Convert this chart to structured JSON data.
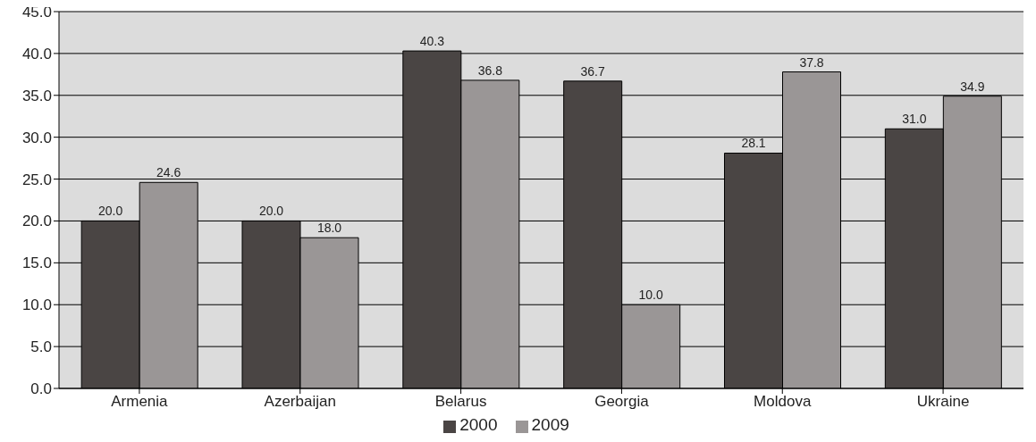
{
  "chart_data": {
    "type": "bar",
    "categories": [
      "Armenia",
      "Azerbaijan",
      "Belarus",
      "Georgia",
      "Moldova",
      "Ukraine"
    ],
    "series": [
      {
        "name": "2000",
        "color": "#4a4544",
        "values": [
          20.0,
          20.0,
          40.3,
          36.7,
          28.1,
          31.0
        ],
        "value_labels": [
          "20.0",
          "20.0",
          "40.3",
          "36.7",
          "28.1",
          "31.0"
        ]
      },
      {
        "name": "2009",
        "color": "#9a9696",
        "values": [
          24.6,
          18.0,
          36.8,
          10.0,
          37.8,
          34.9
        ],
        "value_labels": [
          "24.6",
          "18.0",
          "36.8",
          "10.0",
          "37.8",
          "34.9"
        ]
      }
    ],
    "ylim": [
      0,
      45
    ],
    "yticks": [
      {
        "value": 0,
        "label": "0.0"
      },
      {
        "value": 5,
        "label": "5.0"
      },
      {
        "value": 10,
        "label": "10.0"
      },
      {
        "value": 15,
        "label": "15.0"
      },
      {
        "value": 20,
        "label": "20.0"
      },
      {
        "value": 25,
        "label": "25.0"
      },
      {
        "value": 30,
        "label": "30.0"
      },
      {
        "value": 35,
        "label": "35.0"
      },
      {
        "value": 40,
        "label": "40.0"
      },
      {
        "value": 45,
        "label": "45.0"
      }
    ],
    "grid": "y",
    "legend": "bottom"
  }
}
